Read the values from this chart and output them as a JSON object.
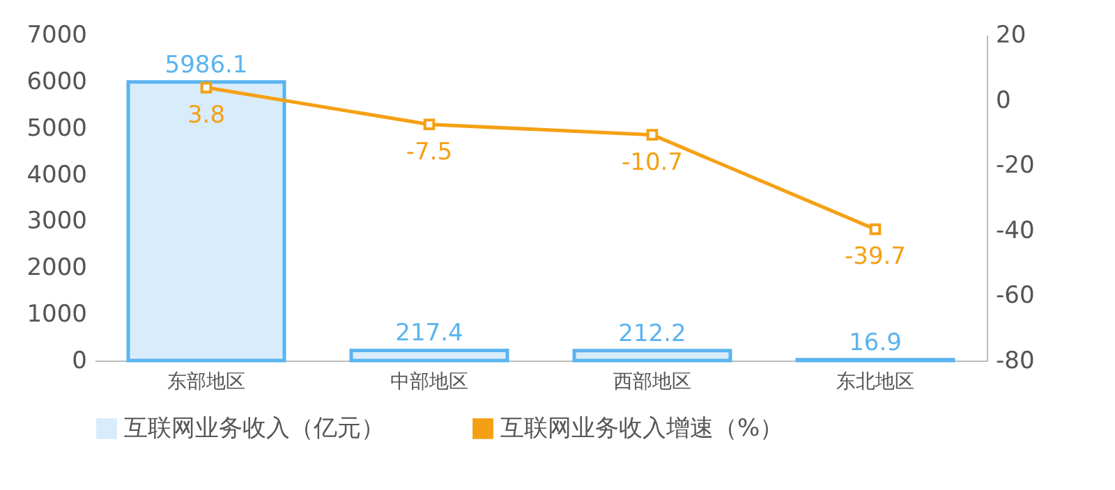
{
  "chart_data": {
    "type": "bar",
    "categories": [
      "东部地区",
      "中部地区",
      "西部地区",
      "东北地区"
    ],
    "series": [
      {
        "name": "互联网业务收入（亿元）",
        "color": "#d9ecfb",
        "values": [
          5986.1,
          217.4,
          212.2,
          16.9
        ]
      },
      {
        "name": "互联网业务收入增速（%）",
        "type": "line",
        "axis": "y2",
        "color": "#f5a014",
        "values": [
          3.8,
          -7.5,
          -10.7,
          -39.7
        ]
      }
    ],
    "ylim": [
      0,
      7000
    ],
    "yticks": [
      0,
      1000,
      2000,
      3000,
      4000,
      5000,
      6000,
      7000
    ],
    "y2lim": [
      -80,
      20
    ],
    "y2ticks": [
      -80,
      -60,
      -40,
      -20,
      0,
      20
    ],
    "data_labels": true,
    "legend": "bottom",
    "grid": false,
    "marker": "square"
  }
}
